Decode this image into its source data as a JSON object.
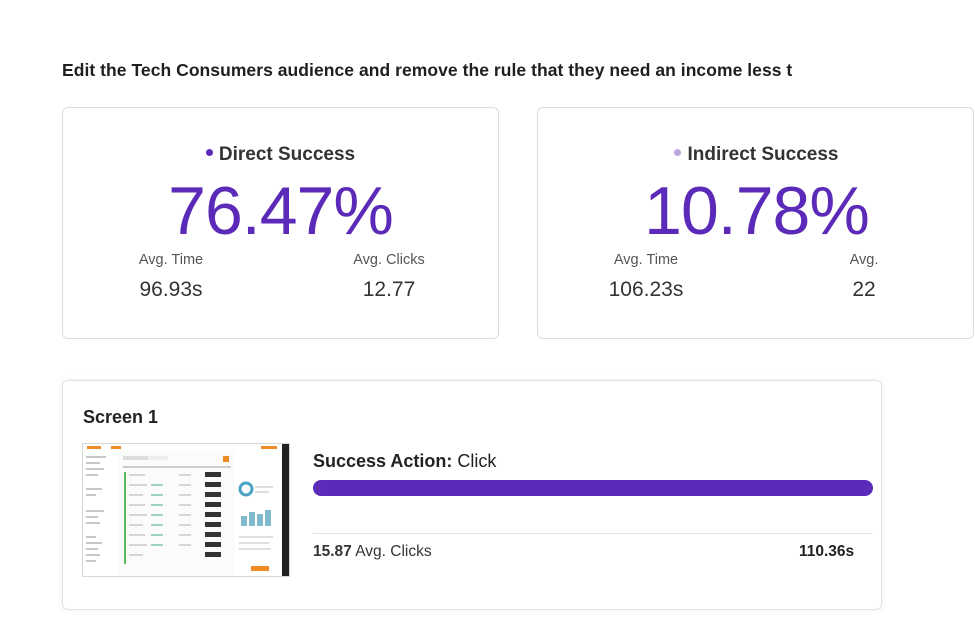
{
  "task": {
    "title": "Edit the Tech Consumers audience and remove the rule that they need an income less t"
  },
  "colors": {
    "accent": "#5b2ab8",
    "indirect_dot": "#b9a6dd",
    "thumb_orange": "#f08a24"
  },
  "cards": [
    {
      "label": "Direct Success",
      "value": "76.47%",
      "stats": [
        {
          "label": "Avg. Time",
          "value": "96.93s"
        },
        {
          "label": "Avg. Clicks",
          "value": "12.77"
        }
      ]
    },
    {
      "label": "Indirect Success",
      "value": "10.78%",
      "stats": [
        {
          "label": "Avg. Time",
          "value": "106.23s"
        },
        {
          "label": "Avg. ",
          "value": "22"
        }
      ]
    }
  ],
  "screen": {
    "title": "Screen 1",
    "action_label": "Success Action:",
    "action_value": "Click",
    "progress_fraction": 1.0,
    "clicks_value": "15.87",
    "clicks_label": "Avg. Clicks",
    "time_value": "110.36s"
  }
}
